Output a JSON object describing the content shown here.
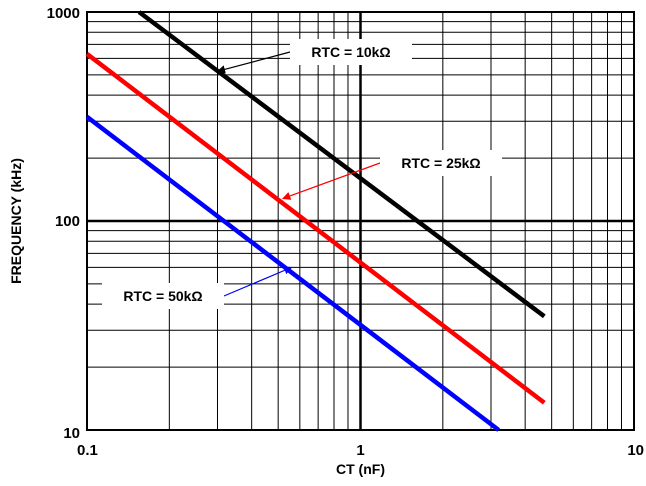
{
  "chart_data": {
    "type": "line",
    "xscale": "log",
    "yscale": "log",
    "xlim": [
      0.1,
      10
    ],
    "ylim": [
      10,
      1000
    ],
    "grid": true,
    "xlabel": "CT (nF)",
    "ylabel": "FREQUENCY (kHz)",
    "x_ticks": [
      "0.1",
      "1",
      "10"
    ],
    "y_ticks": [
      "10",
      "100",
      "1000"
    ],
    "series": [
      {
        "name": "RTC = 10kΩ",
        "color": "#000000",
        "x": [
          0.155,
          4.7
        ],
        "y": [
          1000,
          35
        ]
      },
      {
        "name": "RTC = 25kΩ",
        "color": "#ff0000",
        "x": [
          0.1,
          4.7
        ],
        "y": [
          630,
          13.5
        ]
      },
      {
        "name": "RTC = 50kΩ",
        "color": "#0000ff",
        "x": [
          0.1,
          3.2
        ],
        "y": [
          315,
          10
        ]
      }
    ],
    "annotations": [
      {
        "text": "RTC = 10kΩ",
        "series": 0,
        "arrow_to": [
          0.3,
          520
        ]
      },
      {
        "text": "RTC = 25kΩ",
        "series": 1,
        "arrow_to": [
          0.52,
          128
        ]
      },
      {
        "text": "RTC = 50kΩ",
        "series": 2,
        "arrow_to": [
          0.56,
          60
        ]
      }
    ]
  }
}
